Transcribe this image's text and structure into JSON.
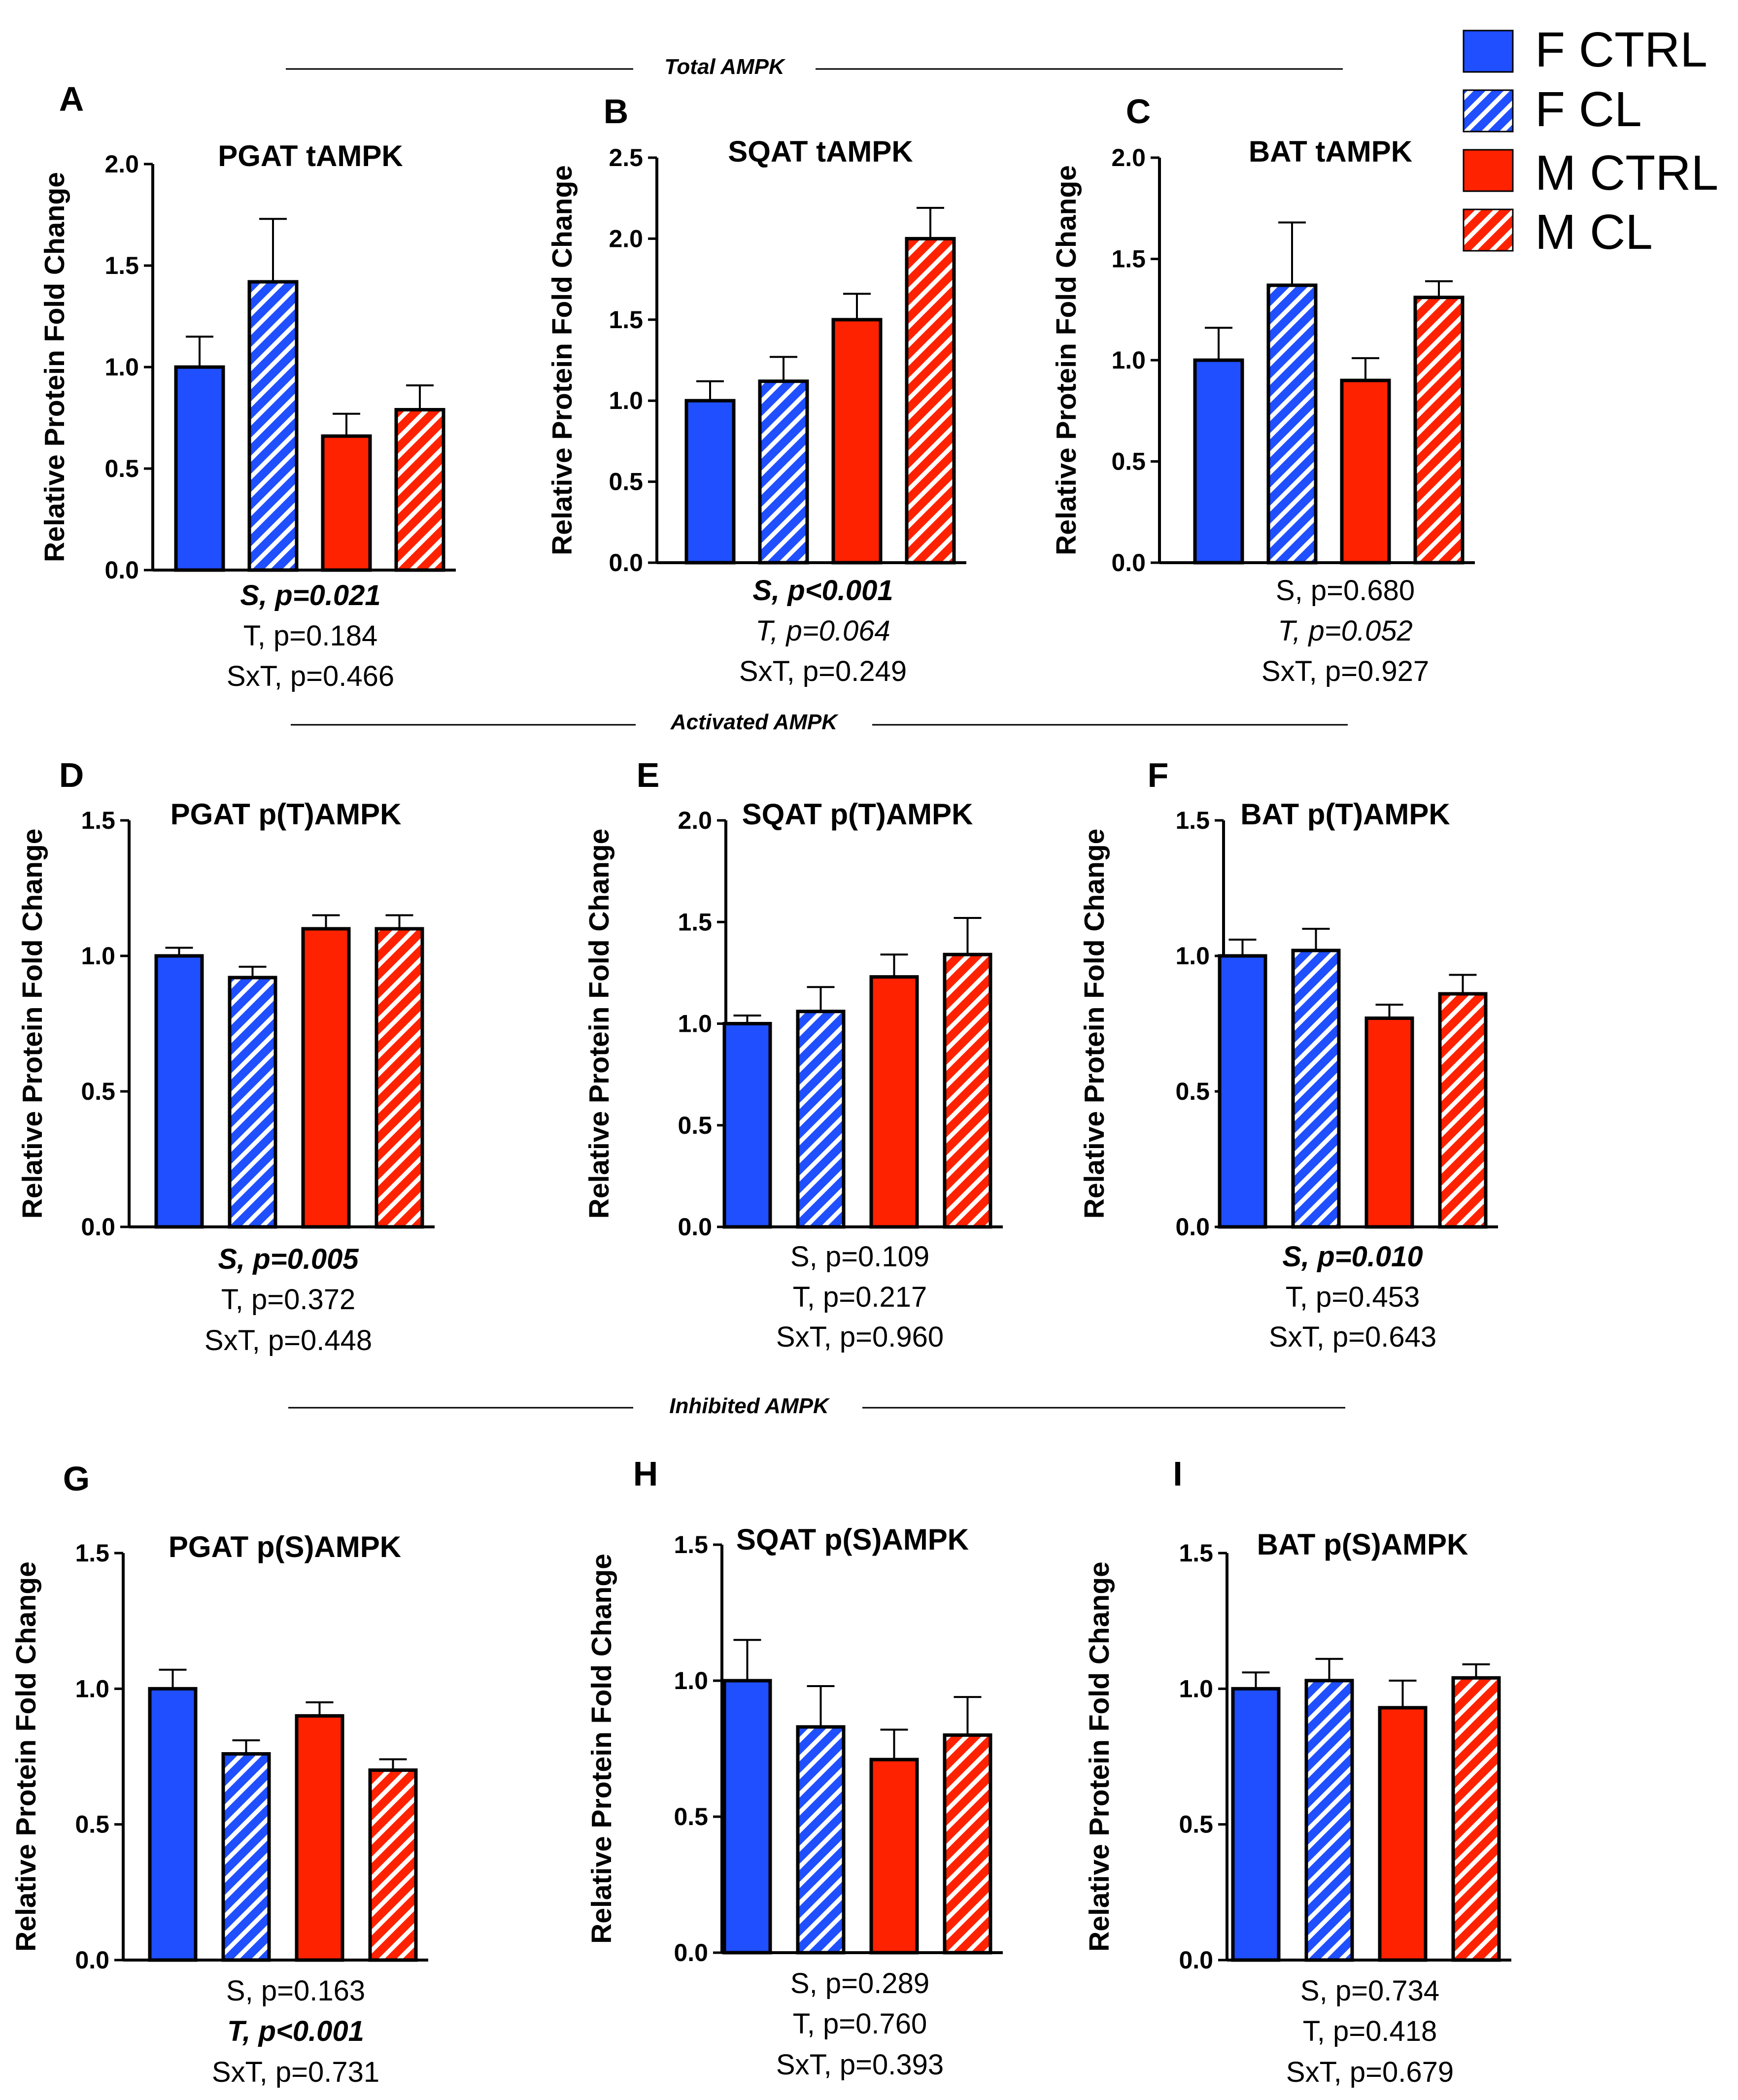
{
  "colors": {
    "blue": "#1f4fff",
    "red": "#ff2200",
    "axis": "#000000"
  },
  "sections": [
    "Total AMPK",
    "Activated AMPK",
    "Inhibited AMPK"
  ],
  "legend": [
    {
      "label": "F CTRL",
      "color": "#1f4fff",
      "hatched": false
    },
    {
      "label": "F CL",
      "color": "#1f4fff",
      "hatched": true
    },
    {
      "label": "M CTRL",
      "color": "#ff2200",
      "hatched": false
    },
    {
      "label": "M CL",
      "color": "#ff2200",
      "hatched": true
    }
  ],
  "chart_data": [
    {
      "type": "bar",
      "panel": "A",
      "title": "PGAT tAMPK",
      "ylabel": "Relative Protein Fold Change",
      "ylim": [
        0,
        2.0
      ],
      "yticks": [
        "0.0",
        "0.5",
        "1.0",
        "1.5",
        "2.0"
      ],
      "categories": [
        "F CTRL",
        "F CL",
        "M CTRL",
        "M CL"
      ],
      "values": [
        1.0,
        1.42,
        0.66,
        0.79
      ],
      "errors": [
        0.15,
        0.31,
        0.11,
        0.12
      ],
      "stats": [
        {
          "text": "S, p=0.021",
          "style": "bi"
        },
        {
          "text": "T, p=0.184",
          "style": "n"
        },
        {
          "text": "SxT, p=0.466",
          "style": "n"
        }
      ]
    },
    {
      "type": "bar",
      "panel": "B",
      "title": "SQAT tAMPK",
      "ylabel": "Relative Protein Fold Change",
      "ylim": [
        0,
        2.5
      ],
      "yticks": [
        "0.0",
        "0.5",
        "1.0",
        "1.5",
        "2.0",
        "2.5"
      ],
      "categories": [
        "F CTRL",
        "F CL",
        "M CTRL",
        "M CL"
      ],
      "values": [
        1.0,
        1.12,
        1.5,
        2.0
      ],
      "errors": [
        0.12,
        0.15,
        0.16,
        0.19
      ],
      "stats": [
        {
          "text": "S, p<0.001",
          "style": "bi"
        },
        {
          "text": "T, p=0.064",
          "style": "i"
        },
        {
          "text": "SxT, p=0.249",
          "style": "n"
        }
      ]
    },
    {
      "type": "bar",
      "panel": "C",
      "title": "BAT tAMPK",
      "ylabel": "Relative Protein Fold Change",
      "ylim": [
        0,
        2.0
      ],
      "yticks": [
        "0.0",
        "0.5",
        "1.0",
        "1.5",
        "2.0"
      ],
      "categories": [
        "F CTRL",
        "F CL",
        "M CTRL",
        "M CL"
      ],
      "values": [
        1.0,
        1.37,
        0.9,
        1.31
      ],
      "errors": [
        0.16,
        0.31,
        0.11,
        0.08
      ],
      "stats": [
        {
          "text": "S, p=0.680",
          "style": "n"
        },
        {
          "text": "T, p=0.052",
          "style": "i"
        },
        {
          "text": "SxT, p=0.927",
          "style": "n"
        }
      ]
    },
    {
      "type": "bar",
      "panel": "D",
      "title": "PGAT p(T)AMPK",
      "ylabel": "Relative Protein Fold Change",
      "ylim": [
        0,
        1.5
      ],
      "yticks": [
        "0.0",
        "0.5",
        "1.0",
        "1.5"
      ],
      "categories": [
        "F CTRL",
        "F CL",
        "M CTRL",
        "M CL"
      ],
      "values": [
        1.0,
        0.92,
        1.1,
        1.1
      ],
      "errors": [
        0.03,
        0.04,
        0.05,
        0.05
      ],
      "stats": [
        {
          "text": "S, p=0.005",
          "style": "bi"
        },
        {
          "text": "T, p=0.372",
          "style": "n"
        },
        {
          "text": "SxT, p=0.448",
          "style": "n"
        }
      ]
    },
    {
      "type": "bar",
      "panel": "E",
      "title": "SQAT p(T)AMPK",
      "ylabel": "Relative Protein Fold Change",
      "ylim": [
        0,
        2.0
      ],
      "yticks": [
        "0.0",
        "0.5",
        "1.0",
        "1.5",
        "2.0"
      ],
      "categories": [
        "F CTRL",
        "F CL",
        "M CTRL",
        "M CL"
      ],
      "values": [
        1.0,
        1.06,
        1.23,
        1.34
      ],
      "errors": [
        0.04,
        0.12,
        0.11,
        0.18
      ],
      "stats": [
        {
          "text": "S, p=0.109",
          "style": "n"
        },
        {
          "text": "T, p=0.217",
          "style": "n"
        },
        {
          "text": "SxT, p=0.960",
          "style": "n"
        }
      ]
    },
    {
      "type": "bar",
      "panel": "F",
      "title": "BAT p(T)AMPK",
      "ylabel": "Relative Protein Fold Change",
      "ylim": [
        0,
        1.5
      ],
      "yticks": [
        "0.0",
        "0.5",
        "1.0",
        "1.5"
      ],
      "categories": [
        "F CTRL",
        "F CL",
        "M CTRL",
        "M CL"
      ],
      "values": [
        1.0,
        1.02,
        0.77,
        0.86
      ],
      "errors": [
        0.06,
        0.08,
        0.05,
        0.07
      ],
      "stats": [
        {
          "text": "S, p=0.010",
          "style": "bi"
        },
        {
          "text": "T, p=0.453",
          "style": "n"
        },
        {
          "text": "SxT, p=0.643",
          "style": "n"
        }
      ]
    },
    {
      "type": "bar",
      "panel": "G",
      "title": "PGAT p(S)AMPK",
      "ylabel": "Relative Protein Fold Change",
      "ylim": [
        0,
        1.5
      ],
      "yticks": [
        "0.0",
        "0.5",
        "1.0",
        "1.5"
      ],
      "categories": [
        "F CTRL",
        "F CL",
        "M CTRL",
        "M CL"
      ],
      "values": [
        1.0,
        0.76,
        0.9,
        0.7
      ],
      "errors": [
        0.07,
        0.05,
        0.05,
        0.04
      ],
      "stats": [
        {
          "text": "S, p=0.163",
          "style": "n"
        },
        {
          "text": "T, p<0.001",
          "style": "bi"
        },
        {
          "text": "SxT, p=0.731",
          "style": "n"
        }
      ]
    },
    {
      "type": "bar",
      "panel": "H",
      "title": "SQAT p(S)AMPK",
      "ylabel": "Relative Protein Fold Change",
      "ylim": [
        0,
        1.5
      ],
      "yticks": [
        "0.0",
        "0.5",
        "1.0",
        "1.5"
      ],
      "categories": [
        "F CTRL",
        "F CL",
        "M CTRL",
        "M CL"
      ],
      "values": [
        1.0,
        0.83,
        0.71,
        0.8
      ],
      "errors": [
        0.15,
        0.15,
        0.11,
        0.14
      ],
      "stats": [
        {
          "text": "S, p=0.289",
          "style": "n"
        },
        {
          "text": "T, p=0.760",
          "style": "n"
        },
        {
          "text": "SxT, p=0.393",
          "style": "n"
        }
      ]
    },
    {
      "type": "bar",
      "panel": "I",
      "title": "BAT p(S)AMPK",
      "ylabel": "Relative Protein Fold Change",
      "ylim": [
        0,
        1.5
      ],
      "yticks": [
        "0.0",
        "0.5",
        "1.0",
        "1.5"
      ],
      "categories": [
        "F CTRL",
        "F CL",
        "M CTRL",
        "M CL"
      ],
      "values": [
        1.0,
        1.03,
        0.93,
        1.04
      ],
      "errors": [
        0.06,
        0.08,
        0.1,
        0.05
      ],
      "stats": [
        {
          "text": "S, p=0.734",
          "style": "n"
        },
        {
          "text": "T, p=0.418",
          "style": "n"
        },
        {
          "text": "SxT, p=0.679",
          "style": "n"
        }
      ]
    }
  ]
}
